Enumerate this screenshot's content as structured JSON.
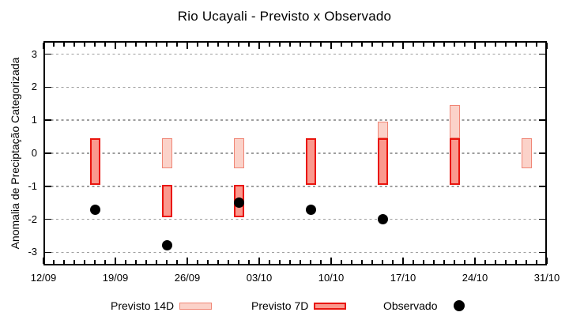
{
  "title": "Rio Ucayali - Previsto x Observado",
  "colors": {
    "previsto_14d_fill": "#fbd2c9",
    "previsto_14d_border": "#f08575",
    "previsto_7d_fill": "#fa998e",
    "previsto_7d_border": "#e9150e",
    "observado": "#000000",
    "grid": "#9e9e9e",
    "frame": "#000000",
    "text": "#000000"
  },
  "chart_data": {
    "type": "bar",
    "title": "Rio Ucayali - Previsto x Observado",
    "xlabel": "",
    "ylabel": "Anomalia de Preciptação Categorizada",
    "ylim": [
      -3.4,
      3.4
    ],
    "y_ticks": [
      -3,
      -2,
      -1,
      0,
      1,
      2,
      3
    ],
    "x_tick_labels": [
      "12/09",
      "19/09",
      "26/09",
      "03/10",
      "10/10",
      "17/10",
      "24/10",
      "31/10"
    ],
    "x_range_days": 49,
    "x_major_interval_days": 7,
    "grid": true,
    "legend_position": "bottom",
    "series": [
      {
        "name": "Previsto 14D",
        "mark": "range-bar",
        "points": [
          {
            "date": "24/09",
            "day": 12,
            "high": 0.45,
            "low": -0.45
          },
          {
            "date": "01/10",
            "day": 19,
            "high": 0.45,
            "low": -0.45
          },
          {
            "date": "15/10",
            "day": 33,
            "high": 0.95,
            "low": 0.45
          },
          {
            "date": "22/10",
            "day": 40,
            "high": 1.45,
            "low": 0.45
          },
          {
            "date": "29/10",
            "day": 47,
            "high": 0.45,
            "low": -0.45
          }
        ]
      },
      {
        "name": "Previsto 7D",
        "mark": "range-bar",
        "points": [
          {
            "date": "17/09",
            "day": 5,
            "high": 0.45,
            "low": -0.95
          },
          {
            "date": "24/09",
            "day": 12,
            "high": -0.95,
            "low": -1.95
          },
          {
            "date": "01/10",
            "day": 19,
            "high": -0.95,
            "low": -1.95
          },
          {
            "date": "08/10",
            "day": 26,
            "high": 0.45,
            "low": -0.95
          },
          {
            "date": "15/10",
            "day": 33,
            "high": 0.45,
            "low": -0.95
          },
          {
            "date": "22/10",
            "day": 40,
            "high": 0.45,
            "low": -0.95
          }
        ]
      },
      {
        "name": "Observado",
        "mark": "dot",
        "points": [
          {
            "date": "17/09",
            "day": 5,
            "value": -1.7
          },
          {
            "date": "24/09",
            "day": 12,
            "value": -2.8
          },
          {
            "date": "01/10",
            "day": 19,
            "value": -1.5
          },
          {
            "date": "08/10",
            "day": 26,
            "value": -1.7
          },
          {
            "date": "15/10",
            "day": 33,
            "value": -2.0
          }
        ]
      }
    ]
  }
}
